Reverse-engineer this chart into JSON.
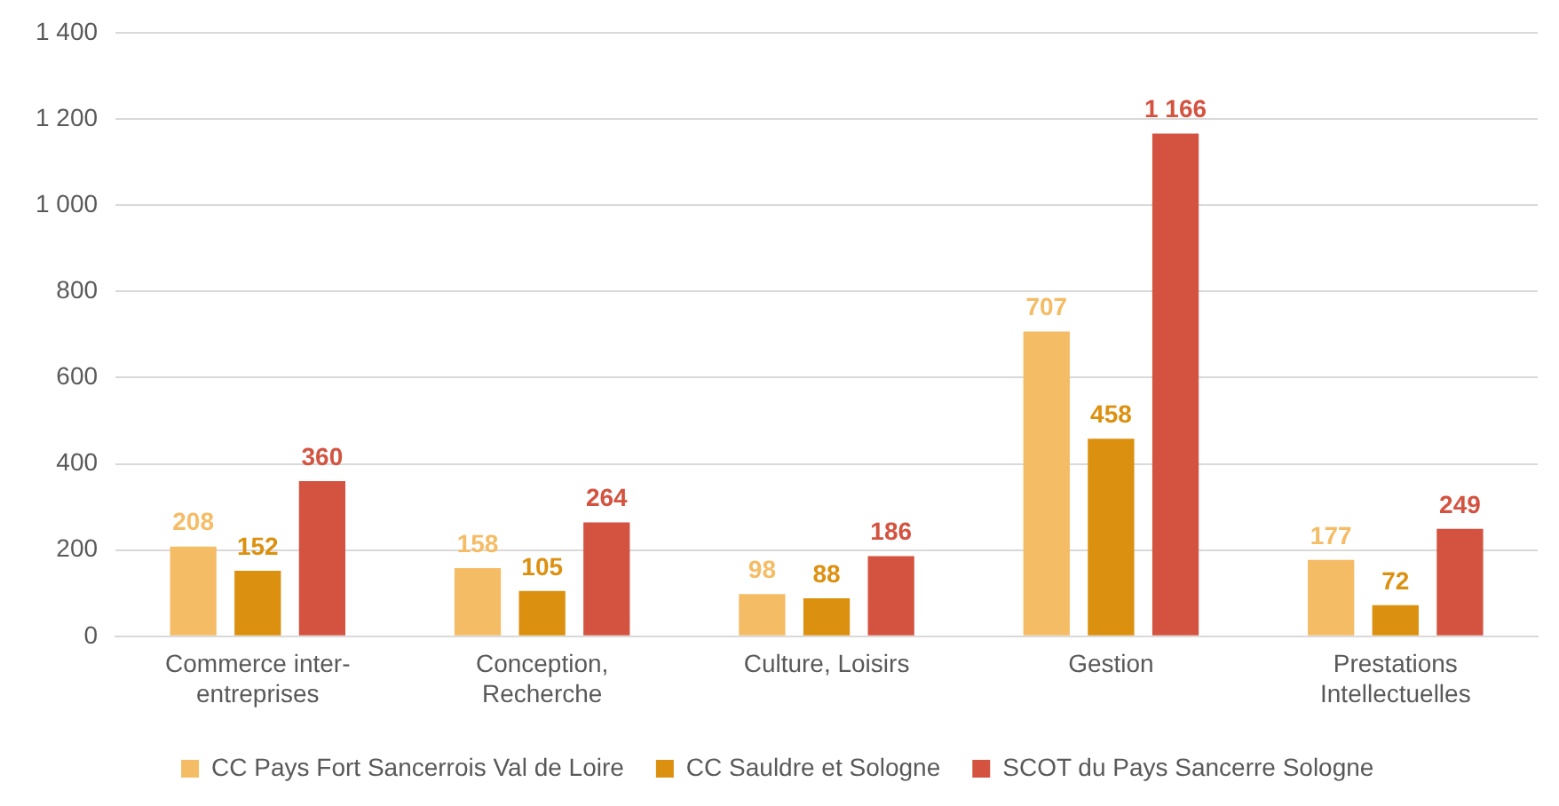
{
  "chart_data": {
    "type": "bar",
    "categories": [
      "Commerce inter-entreprises",
      "Conception, Recherche",
      "Culture, Loisirs",
      "Gestion",
      "Prestations Intellectuelles"
    ],
    "series": [
      {
        "name": "CC Pays Fort Sancerrois Val de Loire",
        "color": "#f5bc66",
        "values": [
          208,
          158,
          98,
          707,
          177
        ],
        "value_labels": [
          "208",
          "158",
          "98",
          "707",
          "177"
        ]
      },
      {
        "name": "CC Sauldre et Sologne",
        "color": "#dc900f",
        "values": [
          152,
          105,
          88,
          458,
          72
        ],
        "value_labels": [
          "152",
          "105",
          "88",
          "458",
          "72"
        ]
      },
      {
        "name": "SCOT du Pays Sancerre Sologne",
        "color": "#d45340",
        "values": [
          360,
          264,
          186,
          1166,
          249
        ],
        "value_labels": [
          "360",
          "264",
          "186",
          "1 166",
          "249"
        ]
      }
    ],
    "ylim": [
      0,
      1400
    ],
    "yticks": [
      0,
      200,
      400,
      600,
      800,
      {
        "value": 1000,
        "label": "1 000"
      },
      {
        "value": 1200,
        "label": "1 200"
      },
      {
        "value": 1400,
        "label": "1 400"
      }
    ],
    "grid": "y",
    "legend": "bottom"
  }
}
